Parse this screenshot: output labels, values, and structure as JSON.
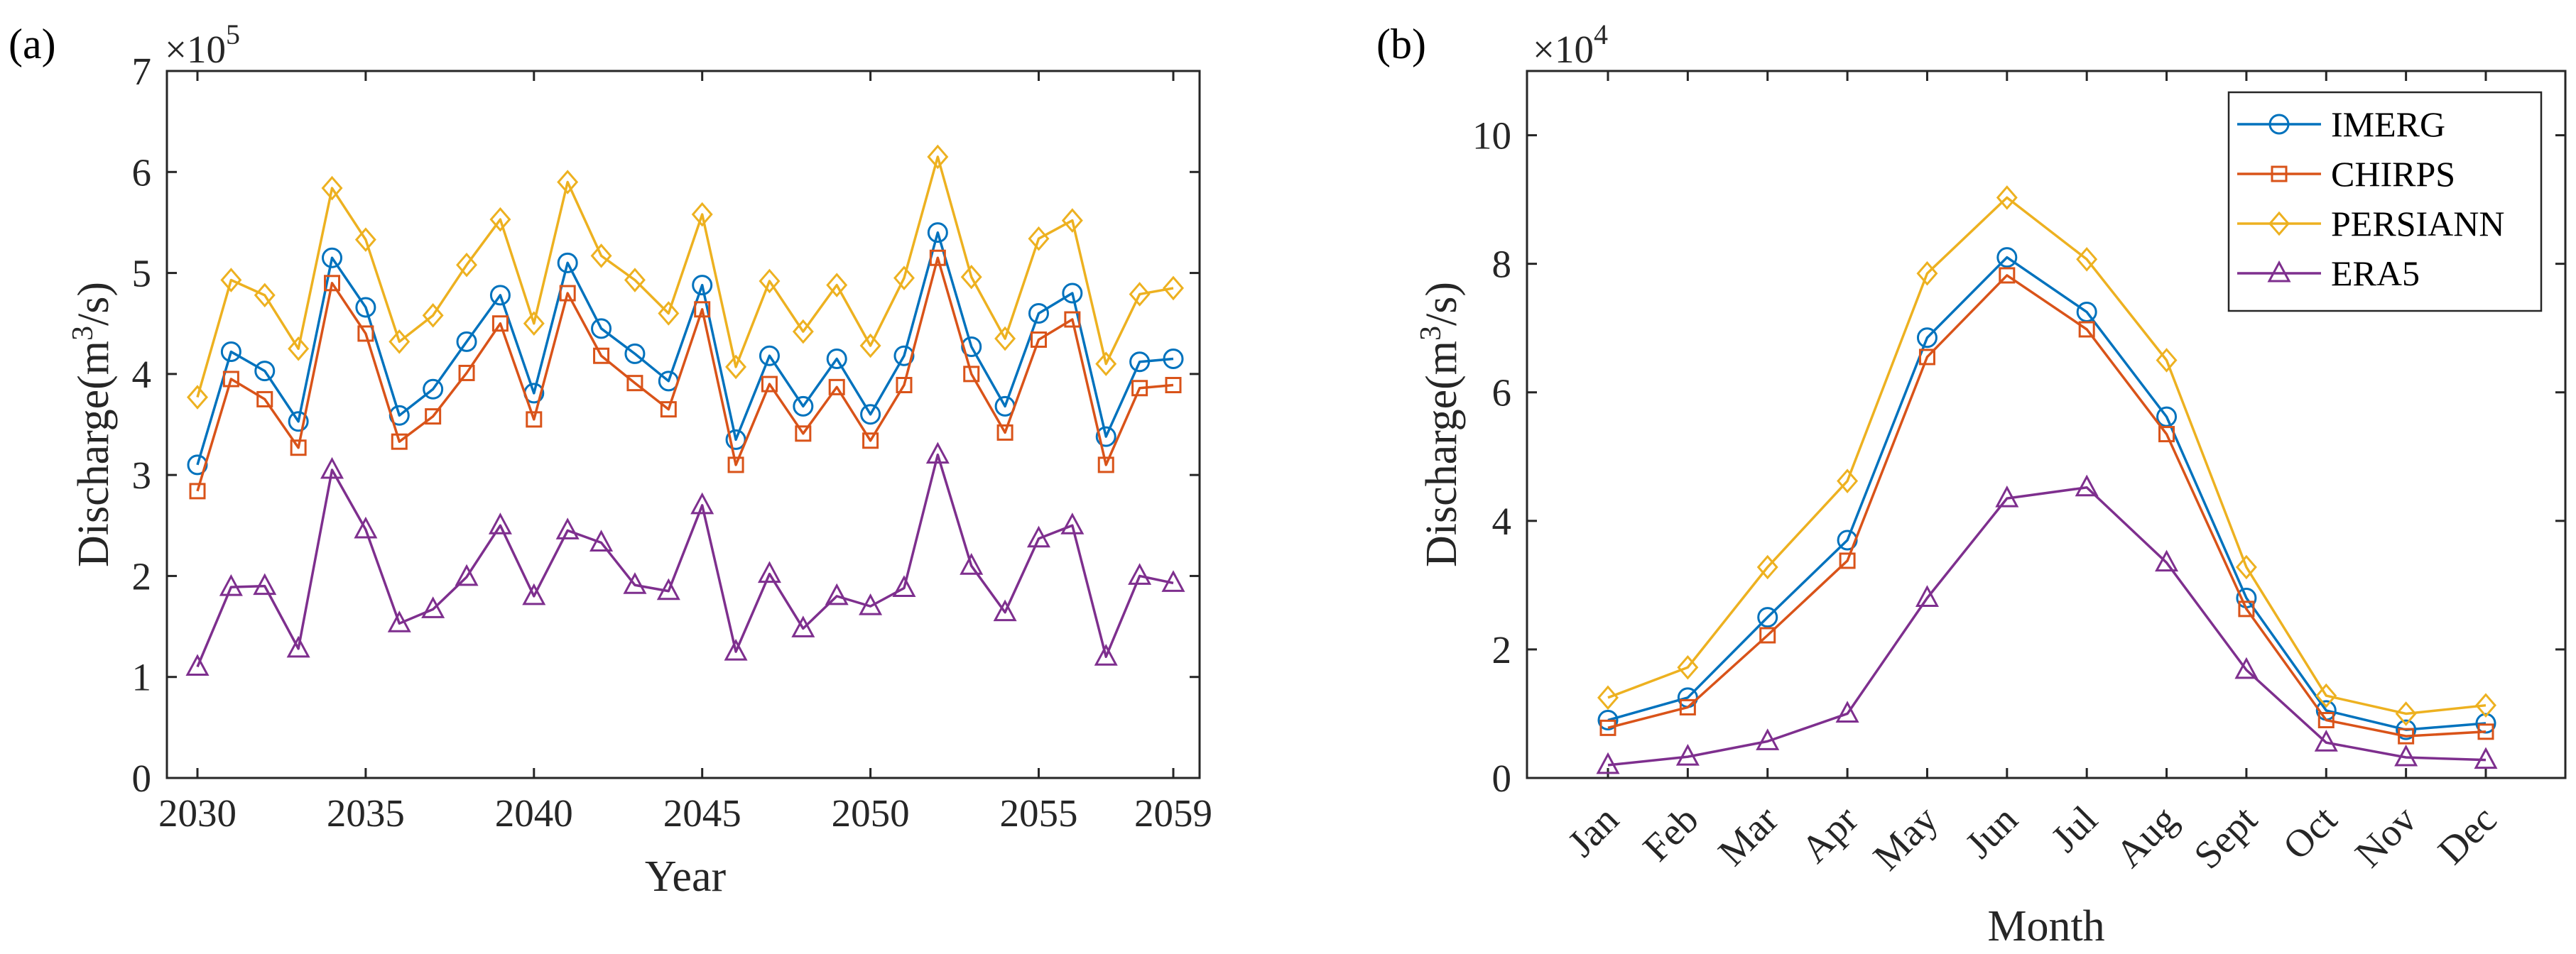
{
  "panels": [
    {
      "panel_label": "(a)",
      "exponent_text": "×10",
      "exponent_power": "5",
      "xlabel": "Year",
      "ylabel_main": "Discharge(m",
      "ylabel_sup": "3",
      "ylabel_tail": "/s)",
      "xtick_labels": [
        "2030",
        "2035",
        "2040",
        "2045",
        "2050",
        "2055",
        "2059"
      ],
      "ytick_labels": [
        "0",
        "1",
        "2",
        "3",
        "4",
        "5",
        "6",
        "7"
      ]
    },
    {
      "panel_label": "(b)",
      "exponent_text": "×10",
      "exponent_power": "4",
      "xlabel": "Month",
      "ylabel_main": "Discharge(m",
      "ylabel_sup": "3",
      "ylabel_tail": "/s)",
      "xtick_labels": [
        "Jan",
        "Feb",
        "Mar",
        "Apr",
        "May",
        "Jun",
        "Jul",
        "Aug",
        "Sept",
        "Oct",
        "Nov",
        "Dec"
      ],
      "ytick_labels": [
        "0",
        "2",
        "4",
        "6",
        "8",
        "10"
      ],
      "legend": [
        "IMERG",
        "CHIRPS",
        "PERSIANN",
        "ERA5"
      ]
    }
  ],
  "colors": {
    "IMERG": "#0072BD",
    "CHIRPS": "#D95319",
    "PERSIANN": "#EDB120",
    "ERA5": "#7E2F8E",
    "axis": "#262626"
  },
  "chart_data": [
    {
      "type": "line",
      "title": "",
      "xlabel": "Year",
      "ylabel": "Discharge(m^3/s)",
      "y_scale": "x10^5",
      "xlim": [
        2030,
        2059
      ],
      "ylim": [
        0,
        7
      ],
      "x": [
        2030,
        2031,
        2032,
        2033,
        2034,
        2035,
        2036,
        2037,
        2038,
        2039,
        2040,
        2041,
        2042,
        2043,
        2044,
        2045,
        2046,
        2047,
        2048,
        2049,
        2050,
        2051,
        2052,
        2053,
        2054,
        2055,
        2056,
        2057,
        2058,
        2059
      ],
      "series": [
        {
          "name": "IMERG",
          "marker": "circle",
          "values": [
            3.1,
            4.22,
            4.03,
            3.53,
            5.15,
            4.66,
            3.59,
            3.85,
            4.32,
            4.78,
            3.81,
            5.1,
            4.45,
            4.2,
            3.93,
            4.88,
            3.35,
            4.18,
            3.68,
            4.15,
            3.6,
            4.18,
            5.4,
            4.27,
            3.68,
            4.6,
            4.8,
            3.38,
            4.12,
            4.15
          ]
        },
        {
          "name": "CHIRPS",
          "marker": "square",
          "values": [
            2.84,
            3.95,
            3.75,
            3.27,
            4.9,
            4.4,
            3.33,
            3.58,
            4.01,
            4.5,
            3.55,
            4.8,
            4.18,
            3.91,
            3.65,
            4.64,
            3.1,
            3.9,
            3.41,
            3.87,
            3.34,
            3.89,
            5.15,
            4.0,
            3.42,
            4.34,
            4.54,
            3.1,
            3.86,
            3.89
          ]
        },
        {
          "name": "PERSIANN",
          "marker": "diamond",
          "values": [
            3.77,
            4.93,
            4.78,
            4.25,
            5.84,
            5.33,
            4.32,
            4.58,
            5.08,
            5.53,
            4.5,
            5.9,
            5.17,
            4.93,
            4.6,
            5.58,
            4.07,
            4.92,
            4.42,
            4.88,
            4.28,
            4.95,
            6.15,
            4.96,
            4.35,
            5.34,
            5.52,
            4.1,
            4.79,
            4.85
          ]
        },
        {
          "name": "ERA5",
          "marker": "triangle",
          "values": [
            1.1,
            1.89,
            1.9,
            1.28,
            3.05,
            2.46,
            1.53,
            1.67,
            1.99,
            2.5,
            1.8,
            2.45,
            2.33,
            1.91,
            1.85,
            2.7,
            1.25,
            2.02,
            1.48,
            1.8,
            1.7,
            1.88,
            3.2,
            2.1,
            1.64,
            2.37,
            2.5,
            1.2,
            2.0,
            1.93
          ]
        }
      ]
    },
    {
      "type": "line",
      "title": "",
      "xlabel": "Month",
      "ylabel": "Discharge(m^3/s)",
      "y_scale": "x10^4",
      "ylim": [
        0,
        11
      ],
      "categories": [
        "Jan",
        "Feb",
        "Mar",
        "Apr",
        "May",
        "Jun",
        "Jul",
        "Aug",
        "Sept",
        "Oct",
        "Nov",
        "Dec"
      ],
      "legend_position": "top-right",
      "series": [
        {
          "name": "IMERG",
          "marker": "circle",
          "values": [
            0.9,
            1.25,
            2.5,
            3.7,
            6.85,
            8.1,
            7.25,
            5.62,
            2.8,
            1.05,
            0.75,
            0.85
          ]
        },
        {
          "name": "CHIRPS",
          "marker": "square",
          "values": [
            0.78,
            1.1,
            2.22,
            3.38,
            6.55,
            7.82,
            6.98,
            5.35,
            2.63,
            0.9,
            0.65,
            0.72
          ]
        },
        {
          "name": "PERSIANN",
          "marker": "diamond",
          "values": [
            1.25,
            1.72,
            3.28,
            4.62,
            7.85,
            9.03,
            8.07,
            6.5,
            3.28,
            1.28,
            1.0,
            1.13
          ]
        },
        {
          "name": "ERA5",
          "marker": "triangle",
          "values": [
            0.2,
            0.33,
            0.57,
            1.0,
            2.8,
            4.35,
            4.52,
            3.35,
            1.68,
            0.55,
            0.32,
            0.28
          ]
        }
      ]
    }
  ]
}
